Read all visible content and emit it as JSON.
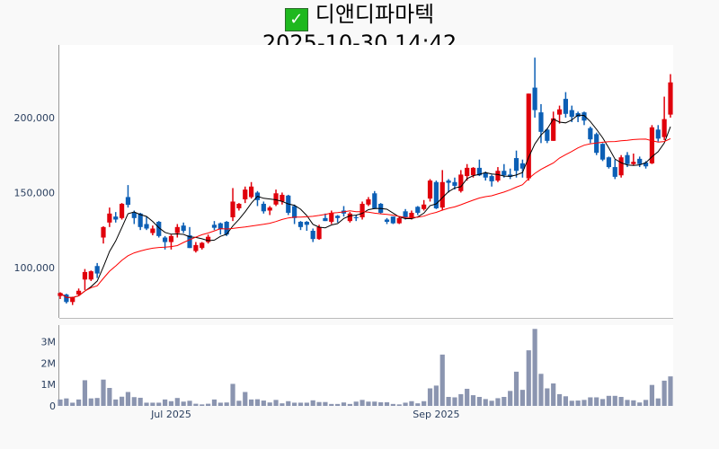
{
  "header": {
    "check_icon": "check-mark-icon",
    "name": "디앤디파마텍",
    "datetime": "2025-10-30 14:42"
  },
  "colors": {
    "up": "#e0000b",
    "down": "#0c5fb5",
    "ma_short": "#000000",
    "ma_long": "#ff0000",
    "volume": "#8b95b0"
  },
  "chart_data": [
    {
      "type": "candlestick",
      "title": "디앤디파마텍",
      "ylim": [
        66400,
        248500
      ],
      "yticks": [
        {
          "value": 100000,
          "label": "100,000"
        },
        {
          "value": 150000,
          "label": "150,000"
        },
        {
          "value": 200000,
          "label": "200,000"
        }
      ],
      "xticks": [
        {
          "index": 18,
          "label": "Jul 2025"
        },
        {
          "index": 61,
          "label": "Sep 2025"
        }
      ],
      "moving_averages": [
        {
          "name": "MA5",
          "window": 5
        },
        {
          "name": "MA20",
          "window": 20
        }
      ],
      "ohlc": [
        [
          81000,
          83500,
          79000,
          83000
        ],
        [
          82000,
          82500,
          76000,
          77000
        ],
        [
          77000,
          80500,
          75000,
          80000
        ],
        [
          82000,
          86000,
          81000,
          84500
        ],
        [
          92000,
          99000,
          85000,
          97000
        ],
        [
          92000,
          98000,
          91000,
          97500
        ],
        [
          101000,
          103000,
          93000,
          96000
        ],
        [
          120000,
          127500,
          116000,
          127000
        ],
        [
          130000,
          140000,
          127000,
          136000
        ],
        [
          134000,
          137000,
          130000,
          132000
        ],
        [
          133000,
          143000,
          132000,
          142500
        ],
        [
          147000,
          155000,
          140000,
          141800
        ],
        [
          136500,
          138000,
          129000,
          133000
        ],
        [
          136000,
          136500,
          125000,
          127000
        ],
        [
          129000,
          134000,
          125000,
          126000
        ],
        [
          123000,
          128000,
          121500,
          126000
        ],
        [
          130500,
          131000,
          120000,
          121000
        ],
        [
          120000,
          121000,
          112000,
          117000
        ],
        [
          117000,
          122000,
          112000,
          121000
        ],
        [
          123000,
          129000,
          120000,
          127000
        ],
        [
          128000,
          130000,
          123000,
          124500
        ],
        [
          121500,
          127000,
          113000,
          113000
        ],
        [
          111000,
          117000,
          110000,
          115000
        ],
        [
          113000,
          117000,
          112000,
          116500
        ],
        [
          117000,
          122000,
          116000,
          120500
        ],
        [
          128500,
          131000,
          125000,
          126500
        ],
        [
          129500,
          130000,
          122000,
          125500
        ],
        [
          130500,
          131000,
          121000,
          122000
        ],
        [
          133500,
          153000,
          131000,
          144000
        ],
        [
          139500,
          143000,
          138000,
          142500
        ],
        [
          145500,
          154000,
          143000,
          152000
        ],
        [
          147000,
          157000,
          146000,
          154000
        ],
        [
          150000,
          151000,
          141000,
          145000
        ],
        [
          142500,
          144000,
          136000,
          137500
        ],
        [
          138000,
          141000,
          135000,
          140000
        ],
        [
          142000,
          152000,
          141000,
          149500
        ],
        [
          144000,
          150000,
          142000,
          148500
        ],
        [
          148000,
          148500,
          135000,
          136500
        ],
        [
          141000,
          142000,
          129000,
          133000
        ],
        [
          130500,
          131000,
          125000,
          127000
        ],
        [
          130500,
          131000,
          124500,
          128500
        ],
        [
          124500,
          126000,
          117000,
          119000
        ],
        [
          119000,
          128500,
          118500,
          127000
        ],
        [
          133000,
          136000,
          131000,
          131000
        ],
        [
          130500,
          138000,
          129000,
          136500
        ],
        [
          134500,
          135000,
          130000,
          133000
        ],
        [
          138000,
          141000,
          134000,
          136000
        ],
        [
          131000,
          137000,
          130000,
          136000
        ],
        [
          133500,
          135000,
          131000,
          133000
        ],
        [
          133500,
          144000,
          132000,
          142500
        ],
        [
          142000,
          147000,
          141000,
          145500
        ],
        [
          149500,
          151000,
          139000,
          139500
        ],
        [
          142500,
          143000,
          136000,
          136500
        ],
        [
          132000,
          133000,
          129000,
          130500
        ],
        [
          134000,
          134000,
          129000,
          129500
        ],
        [
          129500,
          133500,
          129000,
          133000
        ],
        [
          137500,
          139000,
          132000,
          133500
        ],
        [
          133000,
          138000,
          132000,
          136500
        ],
        [
          140500,
          141000,
          135000,
          136500
        ],
        [
          139000,
          145000,
          138000,
          142000
        ],
        [
          146000,
          159000,
          144000,
          158000
        ],
        [
          157000,
          158000,
          139000,
          139500
        ],
        [
          140000,
          165000,
          138000,
          157000
        ],
        [
          158000,
          159000,
          150000,
          156500
        ],
        [
          157000,
          160000,
          152000,
          154500
        ],
        [
          151000,
          165000,
          150000,
          162000
        ],
        [
          161000,
          169000,
          158000,
          166500
        ],
        [
          161500,
          167000,
          160000,
          166500
        ],
        [
          166500,
          172000,
          161000,
          161500
        ],
        [
          163000,
          164000,
          158000,
          160000
        ],
        [
          161000,
          162000,
          154000,
          157500
        ],
        [
          158000,
          167000,
          157000,
          164500
        ],
        [
          164500,
          169000,
          160000,
          161500
        ],
        [
          162000,
          166000,
          159000,
          160500
        ],
        [
          173000,
          178000,
          160000,
          164500
        ],
        [
          169500,
          172000,
          160000,
          166000
        ],
        [
          159500,
          216000,
          158000,
          216000
        ],
        [
          220000,
          240000,
          200000,
          205000
        ],
        [
          203500,
          209000,
          183000,
          190500
        ],
        [
          192000,
          193000,
          183000,
          184500
        ],
        [
          184500,
          204000,
          184500,
          199500
        ],
        [
          202000,
          208000,
          196000,
          205500
        ],
        [
          212500,
          217000,
          200000,
          202500
        ],
        [
          205000,
          208000,
          197000,
          200500
        ],
        [
          203000,
          204000,
          197000,
          200500
        ],
        [
          203500,
          204000,
          195000,
          198000
        ],
        [
          193000,
          194000,
          183000,
          185500
        ],
        [
          189000,
          190000,
          175000,
          176500
        ],
        [
          182500,
          183000,
          171000,
          172000
        ],
        [
          173500,
          174000,
          166000,
          167000
        ],
        [
          167000,
          172000,
          159000,
          160500
        ],
        [
          161500,
          175000,
          160000,
          173500
        ],
        [
          175000,
          177000,
          167000,
          169000
        ],
        [
          169000,
          176000,
          168000,
          170500
        ],
        [
          172500,
          174000,
          167000,
          169000
        ],
        [
          170000,
          171000,
          166000,
          167500
        ],
        [
          169500,
          195000,
          169000,
          193500
        ],
        [
          192000,
          195000,
          184000,
          186000
        ],
        [
          187000,
          214000,
          185000,
          199000
        ],
        [
          202000,
          229000,
          200000,
          223500
        ]
      ]
    },
    {
      "type": "bar",
      "name": "volume",
      "ylim": [
        0,
        3.78
      ],
      "unit": "M",
      "yticks": [
        {
          "value": 0,
          "label": "0"
        },
        {
          "value": 1,
          "label": "1M"
        },
        {
          "value": 2,
          "label": "2M"
        },
        {
          "value": 3,
          "label": "3M"
        }
      ],
      "values": [
        0.3,
        0.35,
        0.15,
        0.3,
        1.2,
        0.35,
        0.37,
        1.23,
        0.84,
        0.3,
        0.43,
        0.65,
        0.41,
        0.38,
        0.15,
        0.15,
        0.15,
        0.3,
        0.22,
        0.37,
        0.2,
        0.24,
        0.1,
        0.07,
        0.1,
        0.3,
        0.15,
        0.16,
        1.03,
        0.24,
        0.65,
        0.3,
        0.31,
        0.25,
        0.16,
        0.28,
        0.12,
        0.22,
        0.15,
        0.15,
        0.15,
        0.26,
        0.18,
        0.18,
        0.09,
        0.09,
        0.16,
        0.09,
        0.2,
        0.28,
        0.2,
        0.2,
        0.17,
        0.17,
        0.09,
        0.07,
        0.15,
        0.22,
        0.12,
        0.22,
        0.82,
        0.95,
        2.4,
        0.42,
        0.4,
        0.55,
        0.8,
        0.5,
        0.42,
        0.32,
        0.24,
        0.36,
        0.42,
        0.7,
        1.6,
        0.75,
        2.6,
        3.6,
        1.5,
        0.82,
        1.05,
        0.55,
        0.45,
        0.24,
        0.25,
        0.28,
        0.4,
        0.4,
        0.32,
        0.47,
        0.47,
        0.42,
        0.28,
        0.26,
        0.16,
        0.28,
        0.98,
        0.35,
        1.18,
        1.38
      ]
    }
  ]
}
